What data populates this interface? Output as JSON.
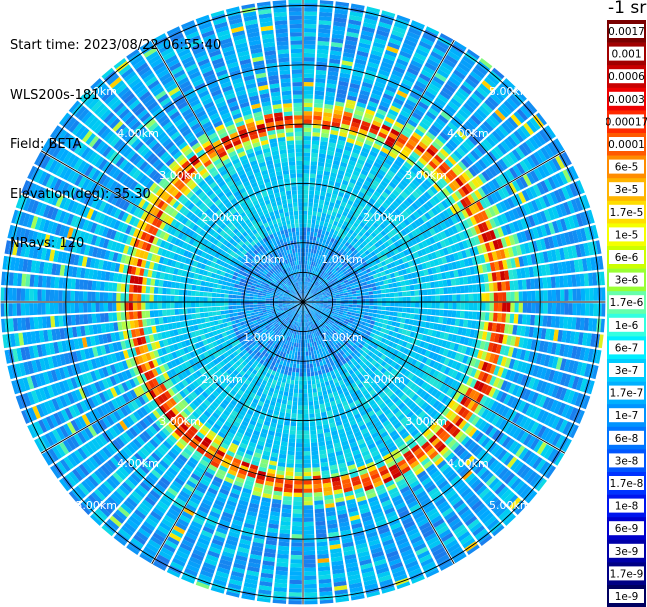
{
  "header": {
    "start_time": "Start time: 2023/08/22 06:55:40",
    "instrument": "WLS200s-181",
    "field": "Field: BETA",
    "elevation": "Elevation(deg): 35.30",
    "nrays": "NRays: 120"
  },
  "colorbar": {
    "title": "-1 sr",
    "labels": [
      "0.0017",
      "0.001",
      "0.0006",
      "0.0003",
      "0.00017",
      "0.0001",
      "6e-5",
      "3e-5",
      "1.7e-5",
      "1e-5",
      "6e-6",
      "3e-6",
      "1.7e-6",
      "1e-6",
      "6e-7",
      "3e-7",
      "1.7e-7",
      "1e-7",
      "6e-8",
      "3e-8",
      "1.7e-8",
      "1e-8",
      "6e-9",
      "3e-9",
      "1.7e-9",
      "1e-9"
    ],
    "colors": [
      "#7a0000",
      "#a10000",
      "#c80000",
      "#ee0000",
      "#ff2a00",
      "#ff5a00",
      "#ff8c00",
      "#ffb400",
      "#ffdd00",
      "#f5ff00",
      "#ccff00",
      "#99ff33",
      "#66ffaa",
      "#33ffe0",
      "#00eeff",
      "#00ccff",
      "#00b0ff",
      "#0093ff",
      "#0075ff",
      "#0055ff",
      "#0033ff",
      "#0015ee",
      "#0000cc",
      "#0000a8",
      "#000085",
      "#000060"
    ]
  },
  "chart_data": {
    "type": "heatmap",
    "projection": "polar (plan position indicator)",
    "range_ring_labels": [
      "1.00km",
      "2.00km",
      "3.00km",
      "4.00km",
      "5.00km"
    ],
    "range_rings_km": [
      1,
      2,
      3,
      4,
      5
    ],
    "spokes_deg": [
      0,
      30,
      60,
      90,
      120,
      150
    ],
    "max_range_km": 5.1,
    "nrays": 120,
    "aerosol_ring_km": 3.05,
    "field": "BETA"
  }
}
